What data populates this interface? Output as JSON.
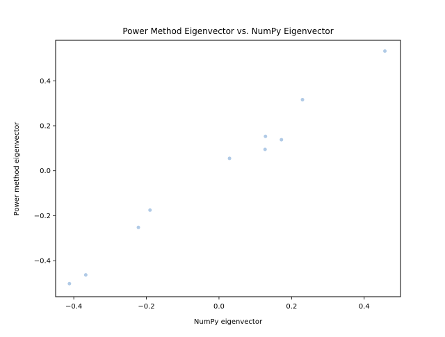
{
  "chart_data": {
    "type": "scatter",
    "title": "Power Method Eigenvector vs. NumPy Eigenvector",
    "xlabel": "NumPy eigenvector",
    "ylabel": "Power method eigenvector",
    "xlim": [
      -0.45,
      0.5
    ],
    "ylim": [
      -0.56,
      0.58
    ],
    "xticks": [
      -0.4,
      -0.2,
      0.0,
      0.2,
      0.4
    ],
    "xtick_labels": [
      "−0.4",
      "−0.2",
      "0.0",
      "0.2",
      "0.4"
    ],
    "yticks": [
      -0.4,
      -0.2,
      0.0,
      0.2,
      0.4
    ],
    "ytick_labels": [
      "−0.4",
      "−0.2",
      "0.0",
      "0.2",
      "0.4"
    ],
    "grid": false,
    "marker_color": "#a7c4e3",
    "points": [
      {
        "x": -0.412,
        "y": -0.502
      },
      {
        "x": -0.367,
        "y": -0.463
      },
      {
        "x": -0.222,
        "y": -0.252
      },
      {
        "x": -0.19,
        "y": -0.175
      },
      {
        "x": 0.029,
        "y": 0.055
      },
      {
        "x": 0.127,
        "y": 0.095
      },
      {
        "x": 0.128,
        "y": 0.153
      },
      {
        "x": 0.172,
        "y": 0.138
      },
      {
        "x": 0.23,
        "y": 0.316
      },
      {
        "x": 0.457,
        "y": 0.532
      }
    ]
  }
}
